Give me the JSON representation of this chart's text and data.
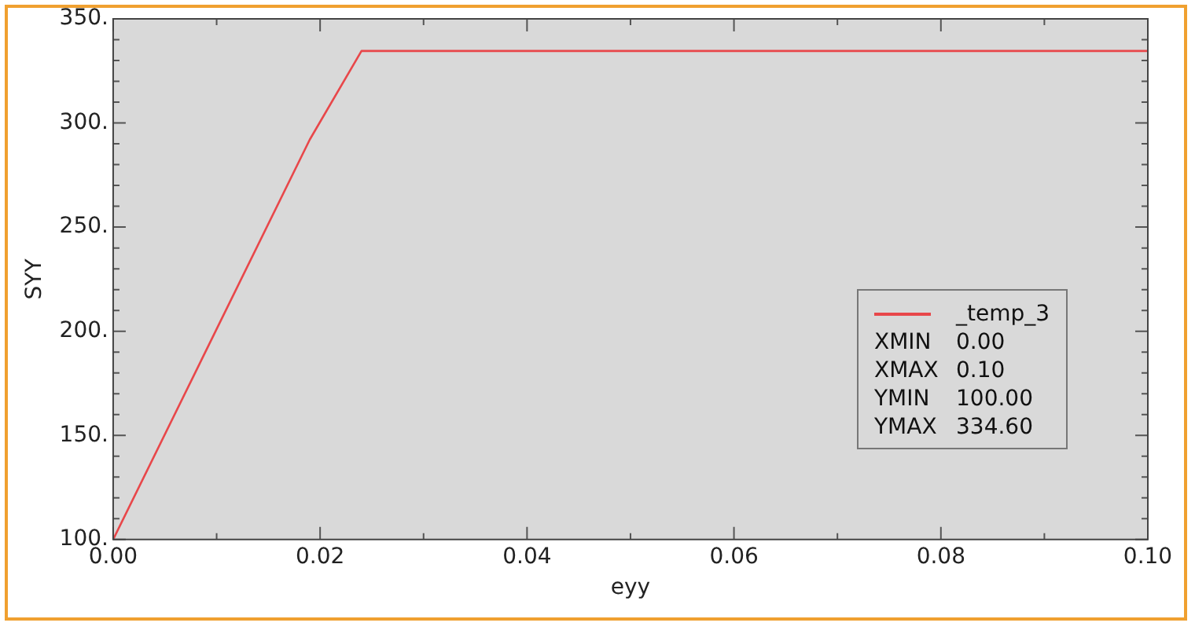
{
  "chart_data": {
    "type": "line",
    "xlabel": "eyy",
    "ylabel": "SYY",
    "x": [
      0,
      0.019,
      0.024,
      0.1
    ],
    "series": [
      {
        "name": "_temp_3",
        "color": "#e8474a",
        "values": [
          100,
          292,
          334.6,
          334.6
        ]
      }
    ],
    "xlim": [
      0,
      0.1
    ],
    "xticks": [
      {
        "value": 0,
        "label": "0.00"
      },
      {
        "value": 0.01,
        "label": null
      },
      {
        "value": 0.02,
        "label": "0.02"
      },
      {
        "value": 0.03,
        "label": null
      },
      {
        "value": 0.04,
        "label": "0.04"
      },
      {
        "value": 0.05,
        "label": null
      },
      {
        "value": 0.06,
        "label": "0.06"
      },
      {
        "value": 0.07,
        "label": null
      },
      {
        "value": 0.08,
        "label": "0.08"
      },
      {
        "value": 0.09,
        "label": null
      },
      {
        "value": 0.1,
        "label": "0.10"
      }
    ],
    "ylim": [
      100,
      350
    ],
    "yticks": [
      {
        "value": 100,
        "label": "100."
      },
      {
        "value": 110,
        "label": null
      },
      {
        "value": 120,
        "label": null
      },
      {
        "value": 130,
        "label": null
      },
      {
        "value": 140,
        "label": null
      },
      {
        "value": 150,
        "label": "150."
      },
      {
        "value": 160,
        "label": null
      },
      {
        "value": 170,
        "label": null
      },
      {
        "value": 180,
        "label": null
      },
      {
        "value": 190,
        "label": null
      },
      {
        "value": 200,
        "label": "200."
      },
      {
        "value": 210,
        "label": null
      },
      {
        "value": 220,
        "label": null
      },
      {
        "value": 230,
        "label": null
      },
      {
        "value": 240,
        "label": null
      },
      {
        "value": 250,
        "label": "250."
      },
      {
        "value": 260,
        "label": null
      },
      {
        "value": 270,
        "label": null
      },
      {
        "value": 280,
        "label": null
      },
      {
        "value": 290,
        "label": null
      },
      {
        "value": 300,
        "label": "300."
      },
      {
        "value": 310,
        "label": null
      },
      {
        "value": 320,
        "label": null
      },
      {
        "value": 330,
        "label": null
      },
      {
        "value": 340,
        "label": null
      },
      {
        "value": 350,
        "label": "350."
      }
    ],
    "grid": false,
    "legend": "right",
    "marker": "none",
    "line_style": "solid",
    "annotations": [
      "XMIN 0.00",
      "XMAX 0.10",
      "YMIN 100.00",
      "YMAX 334.60"
    ]
  }
}
